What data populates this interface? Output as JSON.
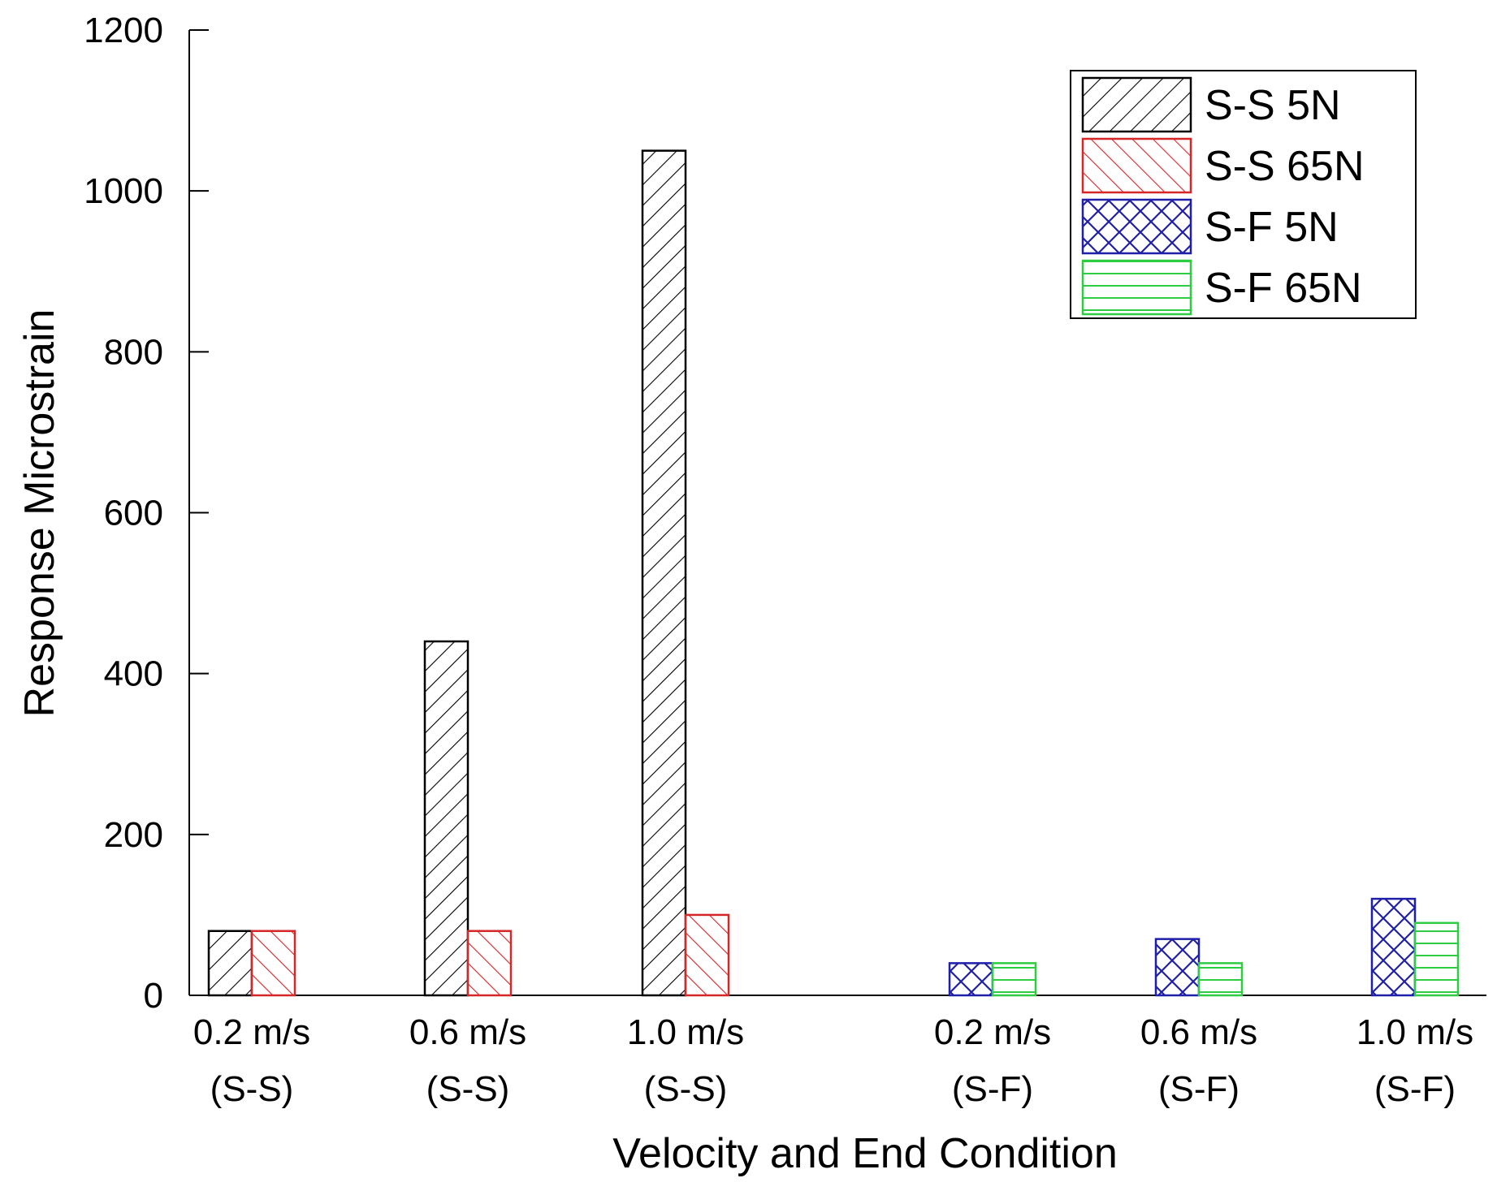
{
  "chart_data": {
    "type": "bar",
    "title": "",
    "xlabel": "Velocity and End Condition",
    "ylabel": "Response Microstrain",
    "ylim": [
      0,
      1200
    ],
    "yticks": [
      0,
      200,
      400,
      600,
      800,
      1000,
      1200
    ],
    "ytick_labels": [
      "0",
      "200",
      "400",
      "600",
      "800",
      "1000",
      "1200"
    ],
    "categories": [
      {
        "line1": "0.2 m/s",
        "line2": "(S-S)"
      },
      {
        "line1": "0.6 m/s",
        "line2": "(S-S)"
      },
      {
        "line1": "1.0 m/s",
        "line2": "(S-S)"
      },
      {
        "line1": "0.2 m/s",
        "line2": "(S-F)"
      },
      {
        "line1": "0.6 m/s",
        "line2": "(S-F)"
      },
      {
        "line1": "1.0 m/s",
        "line2": "(S-F)"
      }
    ],
    "series": [
      {
        "name": "S-S 5N",
        "color": "#000000",
        "pattern": "forward-diagonal",
        "values": [
          80,
          440,
          1050,
          null,
          null,
          null
        ]
      },
      {
        "name": "S-S 65N",
        "color": "#d62728",
        "pattern": "back-diagonal",
        "values": [
          80,
          80,
          100,
          null,
          null,
          null
        ]
      },
      {
        "name": "S-F 5N",
        "color": "#1f1fa8",
        "pattern": "crosshatch",
        "values": [
          null,
          null,
          null,
          40,
          70,
          120
        ]
      },
      {
        "name": "S-F 65N",
        "color": "#2ecc40",
        "pattern": "horizontal",
        "values": [
          null,
          null,
          null,
          40,
          40,
          90
        ]
      }
    ],
    "legend_position": "top-right",
    "grid": false
  }
}
